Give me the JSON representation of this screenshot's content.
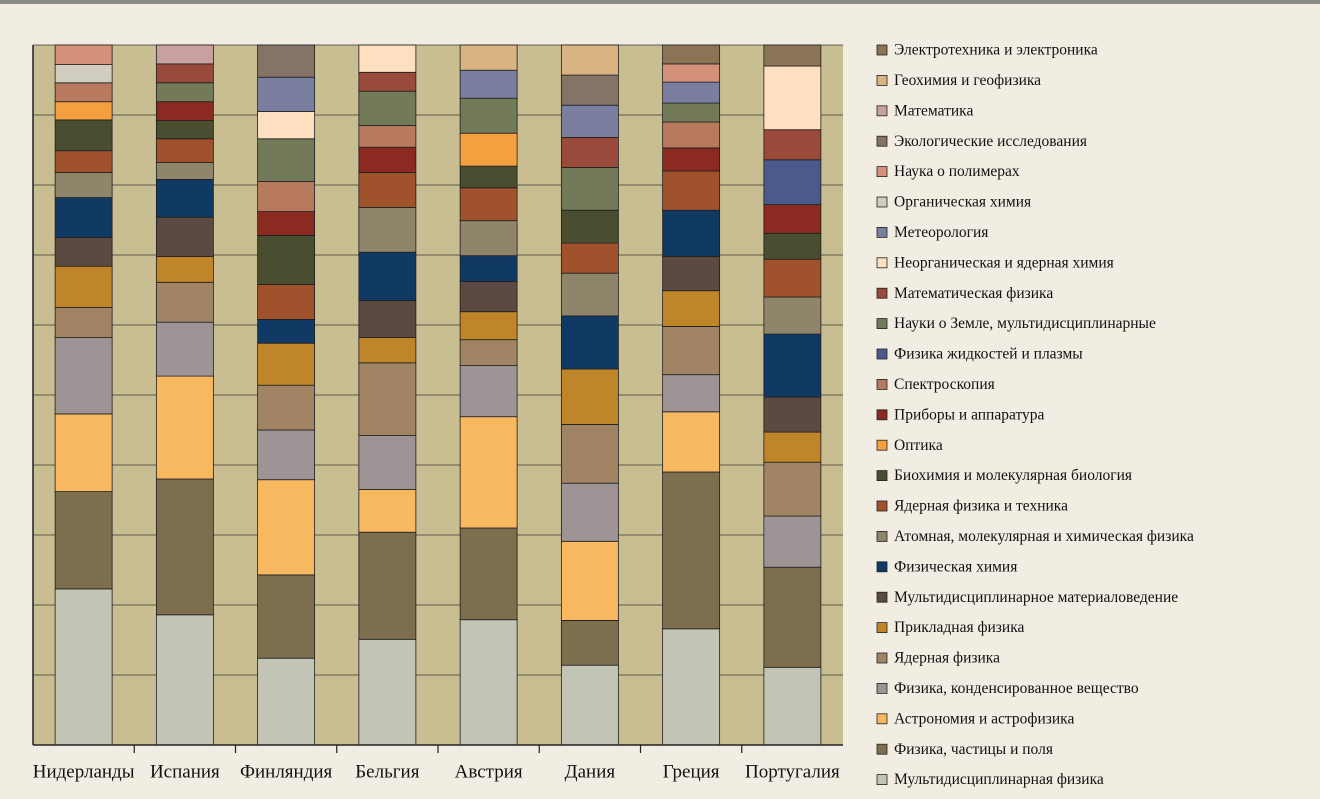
{
  "chart_data": {
    "type": "bar",
    "stacked": true,
    "categories": [
      "Нидерланды",
      "Испания",
      "Финляндия",
      "Бельгия",
      "Австрия",
      "Дания",
      "Греция",
      "Португалия"
    ],
    "series": [
      {
        "name": "Электротехника и электроника",
        "color": "#8b7355",
        "values": [
          0,
          0,
          0,
          0,
          0,
          0,
          2.7,
          3.0
        ]
      },
      {
        "name": "Геохимия и геофизика",
        "color": "#d9b382",
        "values": [
          0,
          0,
          0,
          0,
          3.6,
          4.3,
          0,
          0
        ]
      },
      {
        "name": "Математика",
        "color": "#c9a0a0",
        "values": [
          0,
          2.7,
          0,
          0,
          0,
          0,
          0,
          0
        ]
      },
      {
        "name": "Экологические исследования",
        "color": "#857366",
        "values": [
          0,
          0,
          4.6,
          0,
          0,
          4.3,
          0,
          0
        ]
      },
      {
        "name": "Наука о полимерах",
        "color": "#d4927a",
        "values": [
          2.8,
          0,
          0,
          0,
          0,
          0,
          2.6,
          0
        ]
      },
      {
        "name": "Органическая химия",
        "color": "#d0ccc0",
        "values": [
          2.6,
          0,
          0,
          0,
          0,
          0,
          0,
          0
        ]
      },
      {
        "name": "Метеорология",
        "color": "#7a7fa0",
        "values": [
          0,
          0,
          4.9,
          0,
          4.0,
          4.6,
          3.0,
          0
        ]
      },
      {
        "name": "Неорганическая и ядерная химия",
        "color": "#fde0c0",
        "values": [
          0,
          0,
          3.9,
          3.9,
          0,
          0,
          0,
          9.1
        ]
      },
      {
        "name": "Математическая физика",
        "color": "#9a4a3a",
        "values": [
          0,
          2.7,
          0,
          2.7,
          0,
          4.3,
          0,
          4.3
        ]
      },
      {
        "name": "Науки о Земле, мультидисциплинарные",
        "color": "#737a5a",
        "values": [
          0,
          2.7,
          6.1,
          4.9,
          5.0,
          6.1,
          2.7,
          0
        ]
      },
      {
        "name": "Физика жидкостей и плазмы",
        "color": "#4a5a8a",
        "values": [
          0,
          0,
          0,
          0,
          0,
          0,
          0,
          6.4
        ]
      },
      {
        "name": "Спектроскопия",
        "color": "#b87a5f",
        "values": [
          2.7,
          0,
          4.3,
          3.1,
          0,
          0,
          3.7,
          0
        ]
      },
      {
        "name": "Приборы и аппаратура",
        "color": "#8a2a20",
        "values": [
          0,
          2.7,
          3.4,
          3.6,
          0,
          0,
          3.3,
          4.1
        ]
      },
      {
        "name": "Оптика",
        "color": "#f5a040",
        "values": [
          2.6,
          0,
          0,
          0,
          4.7,
          0,
          0,
          0
        ]
      },
      {
        "name": "Биохимия и молекулярная биология",
        "color": "#4a4e30",
        "values": [
          4.4,
          2.6,
          7.0,
          0,
          3.1,
          4.7,
          0,
          3.7
        ]
      },
      {
        "name": "Ядерная физика и техника",
        "color": "#a0522d",
        "values": [
          3.1,
          3.4,
          5.0,
          5.0,
          4.7,
          4.3,
          5.6,
          5.4
        ]
      },
      {
        "name": "Атомная, молекулярная и химическая физика",
        "color": "#8f856a",
        "values": [
          3.6,
          2.4,
          0,
          6.4,
          5.0,
          6.1,
          0,
          5.3
        ]
      },
      {
        "name": "Физическая химия",
        "color": "#103a63",
        "values": [
          5.7,
          5.4,
          3.4,
          6.9,
          3.7,
          7.6,
          6.6,
          9.0
        ]
      },
      {
        "name": "Мультидисциплинарное материаловедение",
        "color": "#5c4a42",
        "values": [
          4.1,
          5.6,
          0,
          5.3,
          4.3,
          0,
          4.9,
          5.0
        ]
      },
      {
        "name": "Прикладная физика",
        "color": "#c08528",
        "values": [
          5.9,
          3.7,
          6.0,
          3.6,
          4.0,
          7.9,
          5.1,
          4.3
        ]
      },
      {
        "name": "Ядерная физика",
        "color": "#a08464",
        "values": [
          4.3,
          5.7,
          6.4,
          10.4,
          3.7,
          8.4,
          6.9,
          7.7
        ]
      },
      {
        "name": "Физика, конденсированное вещество",
        "color": "#9e9496",
        "values": [
          10.9,
          7.7,
          7.1,
          7.7,
          7.3,
          8.3,
          5.3,
          7.3
        ]
      },
      {
        "name": "Астрономия и астрофизика",
        "color": "#f7b860",
        "values": [
          11.1,
          14.7,
          13.6,
          6.1,
          15.9,
          11.3,
          8.6,
          0
        ]
      },
      {
        "name": "Физика, частицы и поля",
        "color": "#7d6e4e",
        "values": [
          13.9,
          19.4,
          11.9,
          15.3,
          13.1,
          6.4,
          22.4,
          14.3
        ]
      },
      {
        "name": "Мультидисциплинарная физика",
        "color": "#c2c4b6",
        "values": [
          22.3,
          18.6,
          12.4,
          15.1,
          17.9,
          11.4,
          16.6,
          11.1
        ]
      }
    ],
    "ylim": [
      0,
      100
    ],
    "yticks": [
      0,
      10,
      20,
      30,
      40,
      50,
      60,
      70,
      80,
      90,
      100
    ],
    "grid": true
  }
}
